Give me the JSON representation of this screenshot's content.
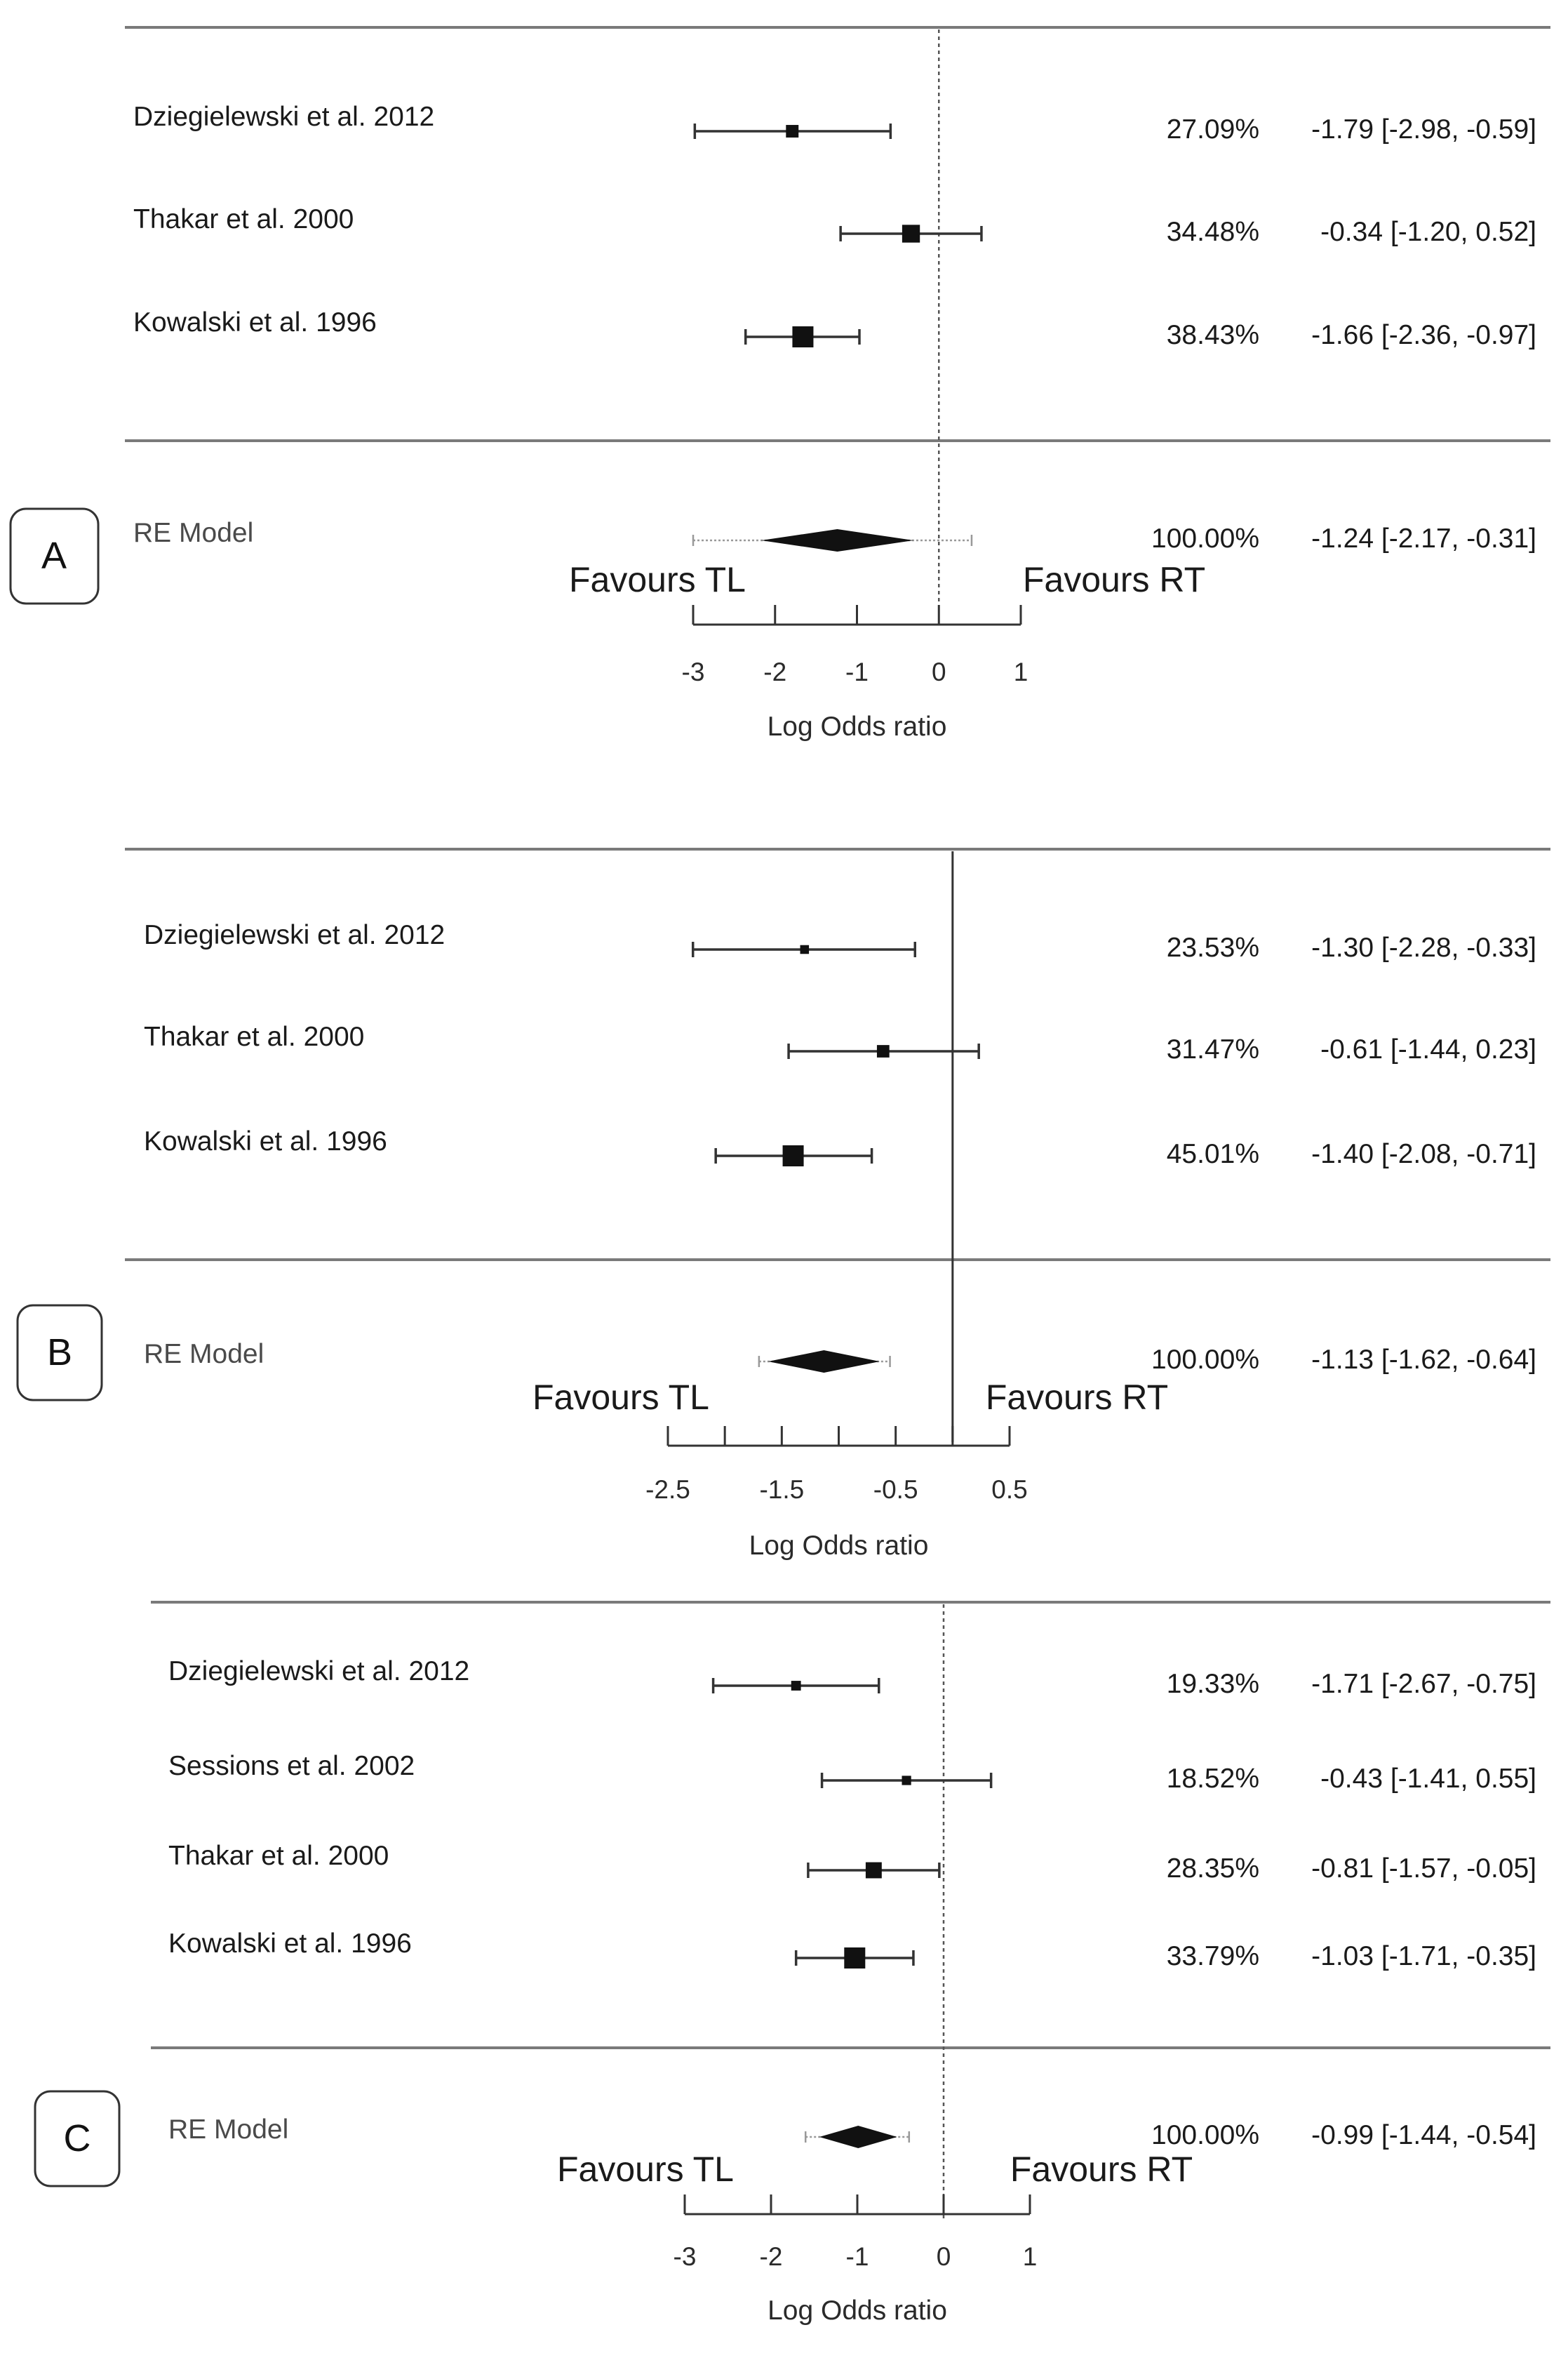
{
  "chart_data": [
    {
      "type": "forest",
      "panel_label": "A",
      "xlabel": "Log Odds ratio",
      "xlim": [
        -3,
        1
      ],
      "xticks": [
        -3,
        -2,
        -1,
        0,
        1
      ],
      "tick_labels": [
        "-3",
        "-2",
        "-1",
        "0",
        "1"
      ],
      "favours_left": "Favours TL",
      "favours_right": "Favours RT",
      "studies": [
        {
          "name": "Dziegielewski et al.  2012",
          "estimate": -1.79,
          "lower": -2.98,
          "upper": -0.59,
          "weight": "27.09%",
          "ci_text": "-1.79 [-2.98, -0.59]"
        },
        {
          "name": "Thakar et al. 2000",
          "estimate": -0.34,
          "lower": -1.2,
          "upper": 0.52,
          "weight": "34.48%",
          "ci_text": "-0.34 [-1.20,  0.52]"
        },
        {
          "name": "Kowalski et al. 1996",
          "estimate": -1.66,
          "lower": -2.36,
          "upper": -0.97,
          "weight": "38.43%",
          "ci_text": "-1.66 [-2.36, -0.97]"
        }
      ],
      "summary": {
        "name": "RE Model",
        "estimate": -1.24,
        "lower": -2.17,
        "upper": -0.31,
        "pi_lower": -3.0,
        "pi_upper": 0.4,
        "weight": "100.00%",
        "ci_text": "-1.24 [-2.17, -0.31]"
      }
    },
    {
      "type": "forest",
      "panel_label": "B",
      "xlabel": "Log Odds ratio",
      "xlim": [
        -2.5,
        0.5
      ],
      "xticks": [
        -2.5,
        -2,
        -1.5,
        -1,
        -0.5,
        0,
        0.5
      ],
      "tick_labels": [
        "-2.5",
        "",
        "-1.5",
        "",
        "-0.5",
        "",
        "0.5"
      ],
      "favours_left": "Favours TL",
      "favours_right": "Favours RT",
      "studies": [
        {
          "name": "Dziegielewski et al. 2012",
          "estimate": -1.3,
          "lower": -2.28,
          "upper": -0.33,
          "weight": "23.53%",
          "ci_text": "-1.30 [-2.28, -0.33]"
        },
        {
          "name": "Thakar et al.  2000",
          "estimate": -0.61,
          "lower": -1.44,
          "upper": 0.23,
          "weight": "31.47%",
          "ci_text": "-0.61 [-1.44,  0.23]"
        },
        {
          "name": "Kowalski et al. 1996",
          "estimate": -1.4,
          "lower": -2.08,
          "upper": -0.71,
          "weight": "45.01%",
          "ci_text": "-1.40 [-2.08, -0.71]"
        }
      ],
      "summary": {
        "name": "RE Model",
        "estimate": -1.13,
        "lower": -1.62,
        "upper": -0.64,
        "pi_lower": -1.7,
        "pi_upper": -0.55,
        "weight": "100.00%",
        "ci_text": "-1.13 [-1.62, -0.64]"
      }
    },
    {
      "type": "forest",
      "panel_label": "C",
      "xlabel": "Log Odds ratio",
      "xlim": [
        -3,
        1
      ],
      "xticks": [
        -3,
        -2,
        -1,
        0,
        1
      ],
      "tick_labels": [
        "-3",
        "-2",
        "-1",
        "0",
        "1"
      ],
      "favours_left": "Favours TL",
      "favours_right": "Favours RT",
      "studies": [
        {
          "name": "Dziegielewski et al.  2012",
          "estimate": -1.71,
          "lower": -2.67,
          "upper": -0.75,
          "weight": "19.33%",
          "ci_text": "-1.71 [-2.67, -0.75]"
        },
        {
          "name": "Sessions et al. 2002",
          "estimate": -0.43,
          "lower": -1.41,
          "upper": 0.55,
          "weight": "18.52%",
          "ci_text": "-0.43 [-1.41,  0.55]"
        },
        {
          "name": "Thakar et al. 2000",
          "estimate": -0.81,
          "lower": -1.57,
          "upper": -0.05,
          "weight": "28.35%",
          "ci_text": "-0.81 [-1.57, -0.05]"
        },
        {
          "name": "Kowalski et al. 1996",
          "estimate": -1.03,
          "lower": -1.71,
          "upper": -0.35,
          "weight": "33.79%",
          "ci_text": "-1.03 [-1.71, -0.35]"
        }
      ],
      "summary": {
        "name": "RE Model",
        "estimate": -0.99,
        "lower": -1.44,
        "upper": -0.54,
        "pi_lower": -1.6,
        "pi_upper": -0.4,
        "weight": "100.00%",
        "ci_text": "-0.99 [-1.44, -0.54]"
      }
    }
  ]
}
